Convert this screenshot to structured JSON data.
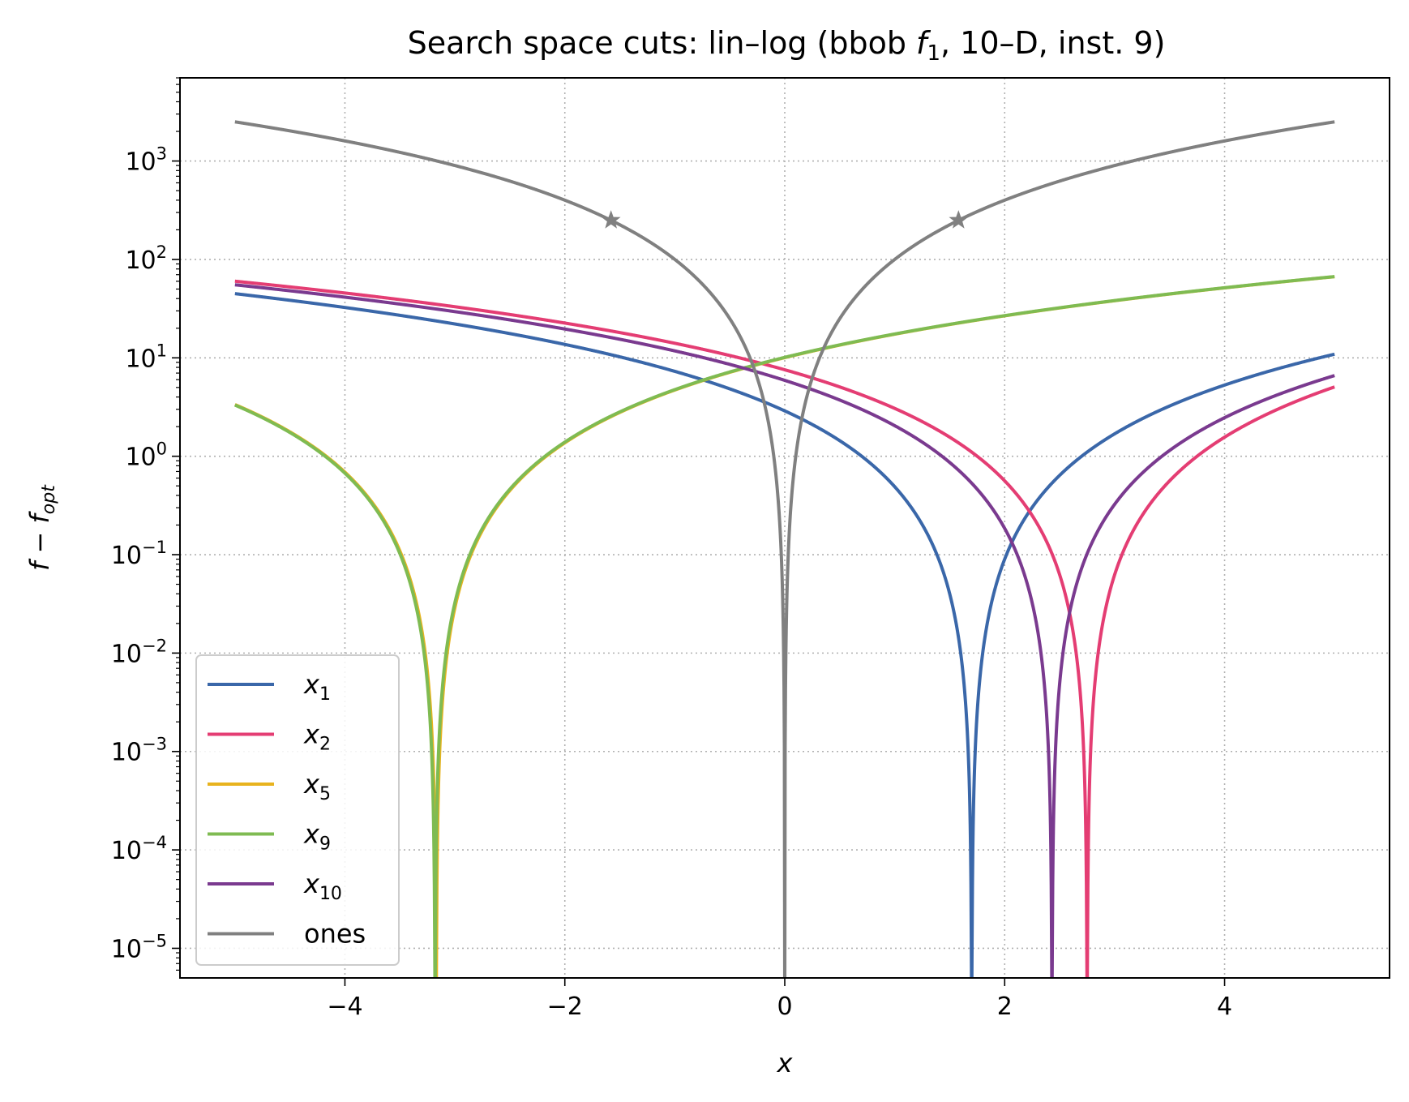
{
  "chart_data": {
    "type": "line",
    "title": "Search space cuts: lin–log (bbob f₁, 10–D, inst. 9)",
    "xlabel": "x",
    "ylabel": "f − f_opt",
    "xlim": [
      -5.5,
      5.5
    ],
    "ylim": [
      5e-06,
      7000
    ],
    "yscale": "log",
    "grid": true,
    "legend_position": "lower-left",
    "xticks": [
      "−4",
      "−2",
      "0",
      "2",
      "4"
    ],
    "yticks": [
      "10⁻⁵",
      "10⁻⁴",
      "10⁻³",
      "10⁻²",
      "10⁻¹",
      "10⁰",
      "10¹",
      "10²",
      "10³"
    ],
    "series": [
      {
        "name": "x₁",
        "color": "#3a67a9",
        "optimum": 1.7,
        "scale": 1.0,
        "x": [
          -5,
          -4,
          -3,
          -2,
          -1,
          0,
          1,
          2,
          3,
          4,
          5
        ],
        "y": [
          45.0,
          32.5,
          22.1,
          13.7,
          7.3,
          2.89,
          0.49,
          0.09,
          1.69,
          5.29,
          10.9
        ]
      },
      {
        "name": "x₂",
        "color": "#e43d73",
        "optimum": 2.75,
        "scale": 1.0,
        "x": [
          -5,
          -4,
          -3,
          -2,
          -1,
          0,
          1,
          2,
          3,
          4,
          5
        ],
        "y": [
          60.1,
          45.6,
          33.1,
          22.6,
          14.1,
          7.56,
          3.06,
          0.56,
          0.06,
          1.56,
          5.06
        ]
      },
      {
        "name": "x₅",
        "color": "#e8b31e",
        "optimum": -3.17,
        "scale": 1.0,
        "x": [
          -5,
          -4,
          -3,
          -2,
          -1,
          0,
          1,
          2,
          3,
          4,
          5
        ],
        "y": [
          3.35,
          0.69,
          0.03,
          1.37,
          4.71,
          10.0,
          17.4,
          26.7,
          38.1,
          51.4,
          66.7
        ]
      },
      {
        "name": "x₉",
        "color": "#7fbb52",
        "optimum": -3.18,
        "scale": 1.0,
        "x": [
          -5,
          -4,
          -3,
          -2,
          -1,
          0,
          1,
          2,
          3,
          4,
          5
        ],
        "y": [
          3.31,
          0.67,
          0.03,
          1.39,
          4.75,
          10.1,
          17.5,
          26.8,
          38.2,
          51.5,
          66.9
        ]
      },
      {
        "name": "x₁₀",
        "color": "#7a3a8f",
        "optimum": 2.43,
        "scale": 1.0,
        "x": [
          -5,
          -4,
          -3,
          -2,
          -1,
          0,
          1,
          2,
          3,
          4,
          5
        ],
        "y": [
          55.2,
          41.3,
          29.5,
          19.6,
          11.8,
          5.9,
          2.04,
          0.18,
          0.32,
          2.46,
          6.6
        ]
      },
      {
        "name": "ones",
        "color": "#808080",
        "optimum": 0.0,
        "scale": 100.0,
        "x": [
          -5,
          -4,
          -3,
          -2,
          -1,
          0,
          1,
          2,
          3,
          4,
          5
        ],
        "y": [
          2500,
          1600,
          900,
          400,
          100,
          0,
          100,
          400,
          900,
          1600,
          2500
        ],
        "markers": [
          {
            "x": -1.58,
            "y": 250
          },
          {
            "x": 1.58,
            "y": 250
          }
        ]
      }
    ]
  }
}
